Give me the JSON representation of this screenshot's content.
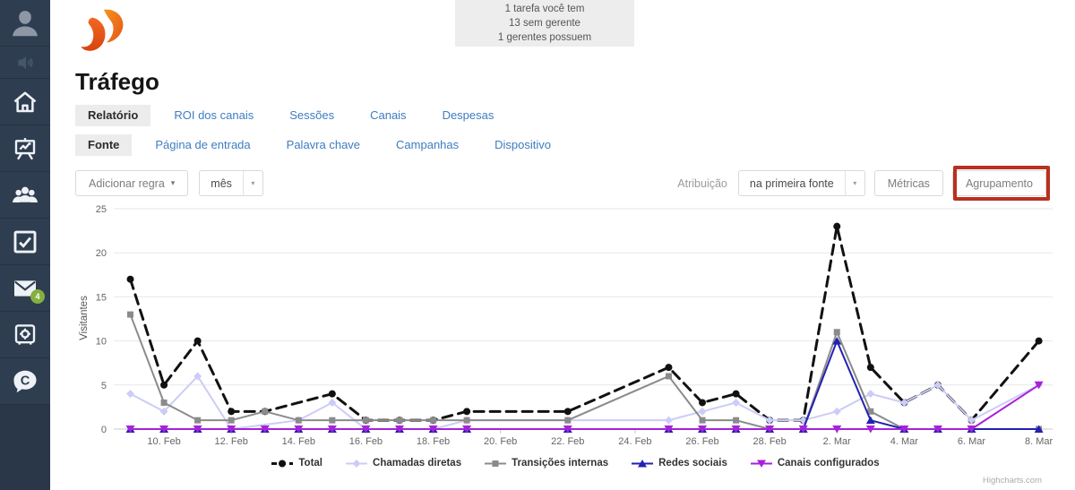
{
  "sidebar": {
    "items": [
      {
        "id": "profile",
        "icon": "person-icon",
        "muted": false,
        "badge": null
      },
      {
        "id": "announce",
        "icon": "speaker-icon",
        "muted": true,
        "badge": null
      },
      {
        "id": "home",
        "icon": "home-icon",
        "muted": false,
        "badge": null
      },
      {
        "id": "stats",
        "icon": "presentation-chart-icon",
        "muted": false,
        "badge": null
      },
      {
        "id": "contacts",
        "icon": "people-icon",
        "muted": false,
        "badge": null
      },
      {
        "id": "tasks",
        "icon": "checkbox-icon",
        "muted": false,
        "badge": null
      },
      {
        "id": "mail",
        "icon": "envelope-icon",
        "muted": false,
        "badge": "4"
      },
      {
        "id": "settings",
        "icon": "safe-icon",
        "muted": false,
        "badge": null
      },
      {
        "id": "chat",
        "icon": "chat-c-icon",
        "muted": false,
        "badge": null
      }
    ]
  },
  "header": {
    "notice_lines": [
      "1 tarefa você tem",
      "13 sem gerente",
      "1 gerentes possuem"
    ]
  },
  "page": {
    "title": "Tráfego"
  },
  "tabs": {
    "primary": [
      {
        "label": "Relatório",
        "active": true
      },
      {
        "label": "ROI dos canais",
        "active": false
      },
      {
        "label": "Sessões",
        "active": false
      },
      {
        "label": "Canais",
        "active": false
      },
      {
        "label": "Despesas",
        "active": false
      }
    ],
    "secondary": [
      {
        "label": "Fonte",
        "active": true
      },
      {
        "label": "Página de entrada",
        "active": false
      },
      {
        "label": "Palavra chave",
        "active": false
      },
      {
        "label": "Campanhas",
        "active": false
      },
      {
        "label": "Dispositivo",
        "active": false
      }
    ]
  },
  "toolbar": {
    "add_rule_label": "Adicionar regra",
    "period_value": "mês",
    "attribution_label": "Atribuição",
    "attribution_value": "na primeira fonte",
    "metrics_label": "Métricas",
    "grouping_label": "Agrupamento",
    "highlight_color": "#b8301f"
  },
  "chart_data": {
    "type": "line",
    "title": "",
    "ylabel": "Visitantes",
    "ylim": [
      0,
      25
    ],
    "yticks": [
      0,
      5,
      10,
      15,
      20,
      25
    ],
    "grid": true,
    "legend_position": "bottom",
    "x_unit": "day (9. Feb – 8. Mar, index 0–27)",
    "x_ticks": [
      [
        1,
        "10. Feb"
      ],
      [
        3,
        "12. Feb"
      ],
      [
        5,
        "14. Feb"
      ],
      [
        7,
        "16. Feb"
      ],
      [
        9,
        "18. Feb"
      ],
      [
        11,
        "20. Feb"
      ],
      [
        13,
        "22. Feb"
      ],
      [
        15,
        "24. Feb"
      ],
      [
        17,
        "26. Feb"
      ],
      [
        19,
        "28. Feb"
      ],
      [
        21,
        "2. Mar"
      ],
      [
        23,
        "4. Mar"
      ],
      [
        25,
        "6. Mar"
      ],
      [
        27,
        "8. Mar"
      ]
    ],
    "series": [
      {
        "name": "Total",
        "color": "#111111",
        "dashed": true,
        "marker": "circle",
        "points": [
          [
            0,
            17
          ],
          [
            1,
            5
          ],
          [
            2,
            10
          ],
          [
            3,
            2
          ],
          [
            4,
            2
          ],
          [
            6,
            4
          ],
          [
            7,
            1
          ],
          [
            8,
            1
          ],
          [
            9,
            1
          ],
          [
            10,
            2
          ],
          [
            13,
            2
          ],
          [
            16,
            7
          ],
          [
            17,
            3
          ],
          [
            18,
            4
          ],
          [
            19,
            1
          ],
          [
            20,
            1
          ],
          [
            21,
            23
          ],
          [
            22,
            7
          ],
          [
            23,
            3
          ],
          [
            24,
            5
          ],
          [
            25,
            1
          ],
          [
            27,
            10
          ]
        ]
      },
      {
        "name": "Chamadas diretas",
        "color": "#ccccf8",
        "dashed": false,
        "marker": "diamond",
        "points": [
          [
            0,
            4
          ],
          [
            1,
            2
          ],
          [
            2,
            6
          ],
          [
            3,
            0
          ],
          [
            5,
            1
          ],
          [
            6,
            3
          ],
          [
            7,
            0
          ],
          [
            8,
            0
          ],
          [
            9,
            0
          ],
          [
            10,
            1
          ],
          [
            13,
            1
          ],
          [
            16,
            1
          ],
          [
            17,
            2
          ],
          [
            18,
            3
          ],
          [
            19,
            1
          ],
          [
            20,
            1
          ],
          [
            21,
            2
          ],
          [
            22,
            4
          ],
          [
            23,
            3
          ],
          [
            24,
            5
          ],
          [
            25,
            1
          ],
          [
            27,
            5
          ]
        ]
      },
      {
        "name": "Transições internas",
        "color": "#8b8b8b",
        "dashed": false,
        "marker": "square",
        "points": [
          [
            0,
            13
          ],
          [
            1,
            3
          ],
          [
            2,
            1
          ],
          [
            3,
            1
          ],
          [
            4,
            2
          ],
          [
            5,
            1
          ],
          [
            6,
            1
          ],
          [
            7,
            1
          ],
          [
            8,
            1
          ],
          [
            9,
            1
          ],
          [
            10,
            1
          ],
          [
            13,
            1
          ],
          [
            16,
            6
          ],
          [
            17,
            1
          ],
          [
            18,
            1
          ],
          [
            19,
            0
          ],
          [
            20,
            0
          ],
          [
            21,
            11
          ],
          [
            22,
            2
          ],
          [
            23,
            0
          ],
          [
            24,
            0
          ],
          [
            25,
            0
          ],
          [
            27,
            0
          ]
        ]
      },
      {
        "name": "Redes sociais",
        "color": "#2222b2",
        "dashed": false,
        "marker": "triangle",
        "points": [
          [
            0,
            0
          ],
          [
            1,
            0
          ],
          [
            2,
            0
          ],
          [
            3,
            0
          ],
          [
            4,
            0
          ],
          [
            5,
            0
          ],
          [
            6,
            0
          ],
          [
            7,
            0
          ],
          [
            8,
            0
          ],
          [
            9,
            0
          ],
          [
            10,
            0
          ],
          [
            13,
            0
          ],
          [
            16,
            0
          ],
          [
            17,
            0
          ],
          [
            18,
            0
          ],
          [
            19,
            0
          ],
          [
            20,
            0
          ],
          [
            21,
            10
          ],
          [
            22,
            1
          ],
          [
            23,
            0
          ],
          [
            24,
            0
          ],
          [
            25,
            0
          ],
          [
            27,
            0
          ]
        ]
      },
      {
        "name": "Canais configurados",
        "color": "#a722d8",
        "dashed": false,
        "marker": "triangle-down",
        "points": [
          [
            0,
            0
          ],
          [
            1,
            0
          ],
          [
            2,
            0
          ],
          [
            3,
            0
          ],
          [
            4,
            0
          ],
          [
            5,
            0
          ],
          [
            6,
            0
          ],
          [
            7,
            0
          ],
          [
            8,
            0
          ],
          [
            9,
            0
          ],
          [
            10,
            0
          ],
          [
            13,
            0
          ],
          [
            16,
            0
          ],
          [
            17,
            0
          ],
          [
            18,
            0
          ],
          [
            19,
            0
          ],
          [
            20,
            0
          ],
          [
            21,
            0
          ],
          [
            22,
            0
          ],
          [
            23,
            0
          ],
          [
            24,
            0
          ],
          [
            25,
            0
          ],
          [
            27,
            5
          ]
        ]
      }
    ],
    "credit": "Highcharts.com"
  }
}
